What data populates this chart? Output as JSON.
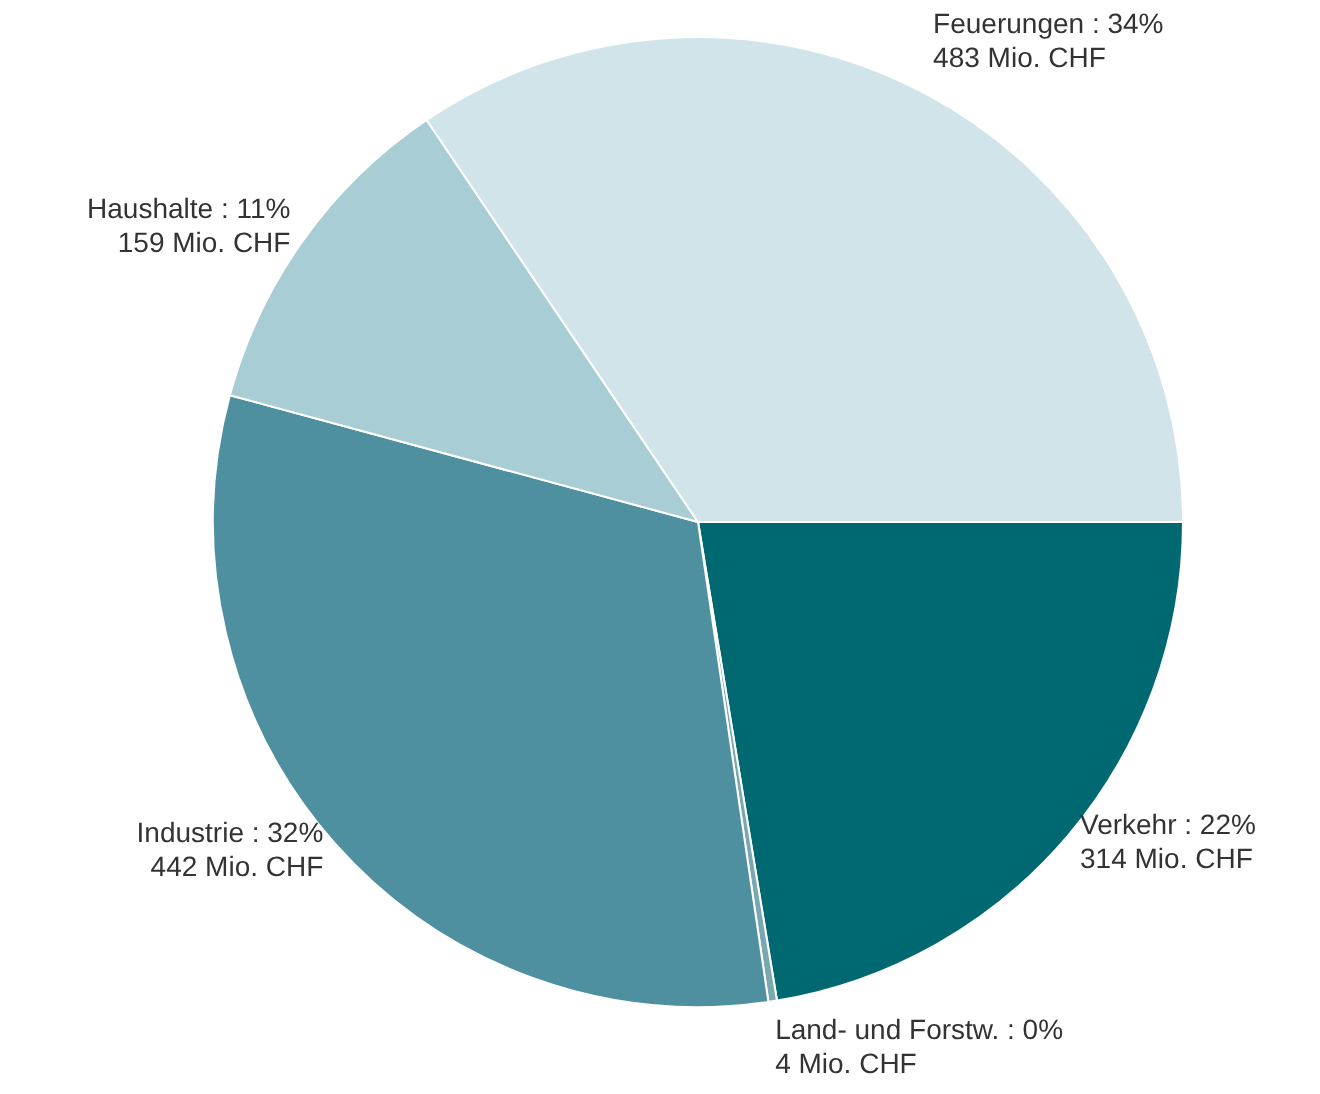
{
  "chart_data": {
    "type": "pie",
    "categories": [
      "Verkehr : 22%",
      "Land- und Forstw. : 0%",
      "Industrie : 32%",
      "Haushalte : 11%",
      "Feuerungen : 34%"
    ],
    "values": [
      314,
      4,
      442,
      159,
      483
    ],
    "value_labels": [
      "314 Mio. CHF",
      "4 Mio. CHF",
      "442 Mio. CHF",
      "159 Mio. CHF",
      "483 Mio. CHF"
    ],
    "colors": [
      "#006870",
      "#7aa8b0",
      "#4e90a0",
      "#a8cdd4",
      "#d0e4e9"
    ],
    "legend": false
  }
}
